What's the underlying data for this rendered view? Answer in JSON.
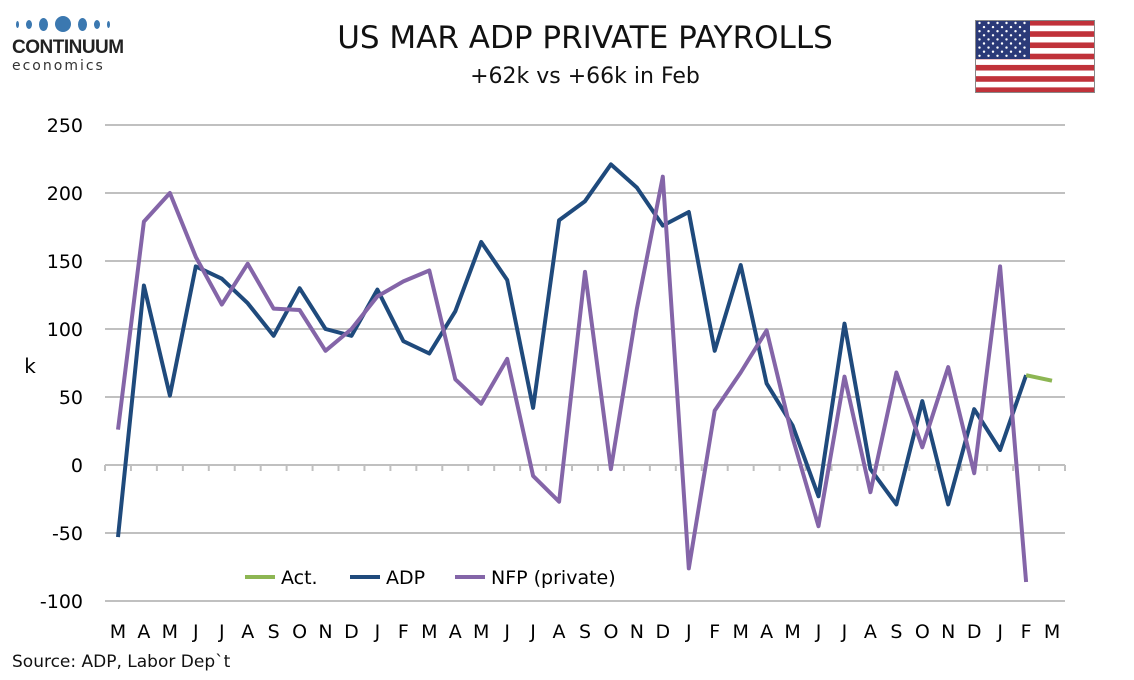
{
  "header": {
    "logo_main": "CONTINUUM",
    "logo_sub": "economics",
    "title": "US MAR ADP PRIVATE PAYROLLS",
    "subtitle": "+62k vs +66k in Feb",
    "flag_icon": "us-flag-icon"
  },
  "footer": {
    "source": "Source: ADP, Labor Dep`t"
  },
  "chart_data": {
    "type": "line",
    "title": "US MAR ADP PRIVATE PAYROLLS",
    "subtitle": "+62k vs +66k in Feb",
    "xlabel": "",
    "ylabel": "k",
    "ylim": [
      -100,
      250
    ],
    "yticks": [
      250,
      200,
      150,
      100,
      50,
      0,
      -50,
      -100
    ],
    "grid": true,
    "legend_position": "bottom-left",
    "categories": [
      "M",
      "A",
      "M",
      "J",
      "J",
      "A",
      "S",
      "O",
      "N",
      "D",
      "J",
      "F",
      "M",
      "A",
      "M",
      "J",
      "J",
      "A",
      "S",
      "O",
      "N",
      "D",
      "J",
      "F",
      "M",
      "A",
      "M",
      "J",
      "J",
      "A",
      "S",
      "O",
      "N",
      "D",
      "J",
      "F",
      "M"
    ],
    "series": [
      {
        "name": "Act.",
        "color": "#8db653",
        "values": [
          null,
          null,
          null,
          null,
          null,
          null,
          null,
          null,
          null,
          null,
          null,
          null,
          null,
          null,
          null,
          null,
          null,
          null,
          null,
          null,
          null,
          null,
          null,
          null,
          null,
          null,
          null,
          null,
          null,
          null,
          null,
          null,
          null,
          null,
          null,
          66,
          62
        ]
      },
      {
        "name": "ADP",
        "color": "#1f4a7c",
        "values": [
          -53,
          132,
          51,
          146,
          137,
          119,
          95,
          130,
          100,
          95,
          129,
          91,
          82,
          113,
          164,
          136,
          42,
          180,
          194,
          221,
          204,
          176,
          186,
          84,
          147,
          60,
          29,
          -23,
          104,
          -3,
          -29,
          47,
          -29,
          41,
          11,
          66,
          null
        ]
      },
      {
        "name": "NFP (private)",
        "color": "#8465a8",
        "values": [
          26,
          179,
          200,
          153,
          118,
          148,
          115,
          114,
          84,
          100,
          124,
          135,
          143,
          63,
          45,
          78,
          -8,
          -27,
          142,
          -3,
          115,
          212,
          -76,
          40,
          68,
          99,
          20,
          -45,
          65,
          -20,
          68,
          13,
          72,
          -6,
          146,
          -86,
          null
        ]
      }
    ]
  }
}
